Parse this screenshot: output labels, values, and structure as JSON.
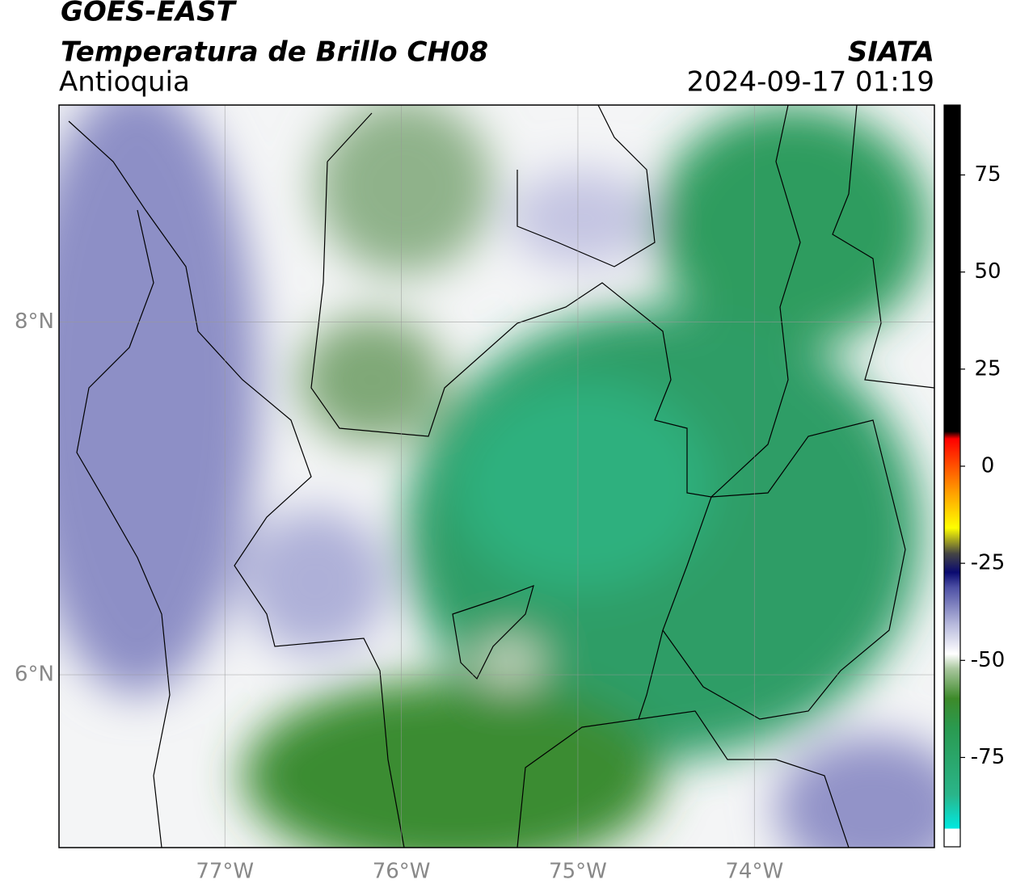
{
  "header": {
    "title": "GOES-EAST",
    "subtitle": "Temperatura de Brillo CH08",
    "region": "Antioquia",
    "agency": "SIATA",
    "datetime": "2024-09-17 01:19"
  },
  "map": {
    "xlim": [
      -77.94,
      -72.98
    ],
    "ylim": [
      5.02,
      9.23
    ],
    "xticks": [
      {
        "value": -77,
        "label": "77°W"
      },
      {
        "value": -76,
        "label": "76°W"
      },
      {
        "value": -75,
        "label": "75°W"
      },
      {
        "value": -74,
        "label": "74°W"
      }
    ],
    "yticks": [
      {
        "value": 8,
        "label": "8°N"
      },
      {
        "value": 6,
        "label": "6°N"
      }
    ],
    "grid": true
  },
  "colorbar": {
    "lim": [
      -98,
      93
    ],
    "ticks": [
      75,
      50,
      25,
      0,
      -25,
      -50,
      -75
    ]
  }
}
